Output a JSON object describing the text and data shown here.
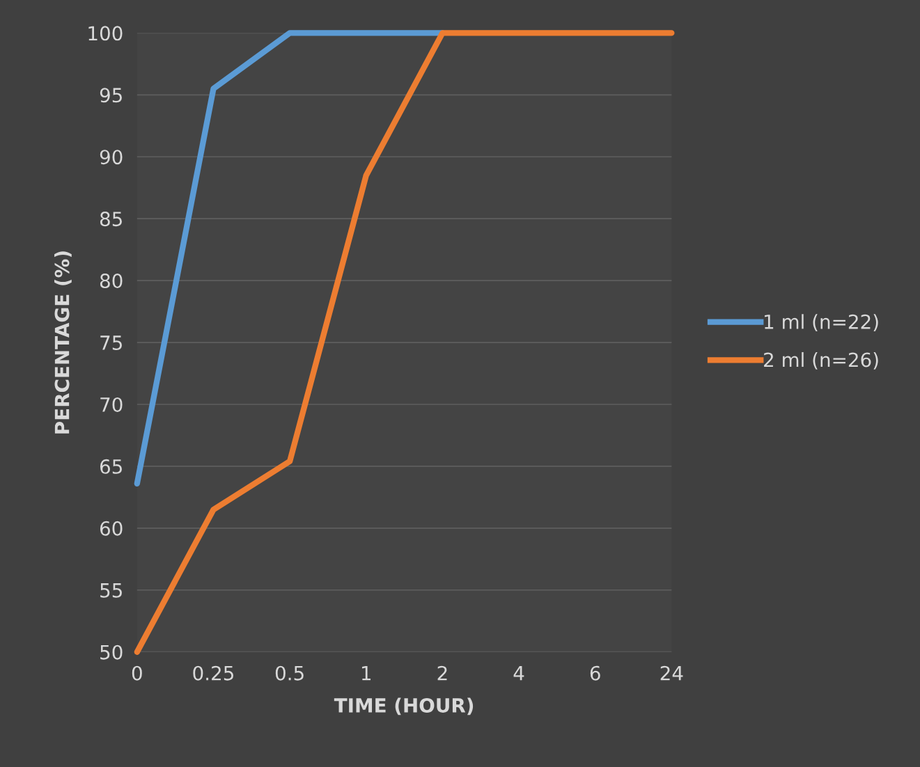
{
  "chart_data": {
    "type": "line",
    "xlabel": "TIME (HOUR)",
    "ylabel": "PERCENTAGE (%)",
    "categories": [
      "0",
      "0.25",
      "0.5",
      "1",
      "2",
      "4",
      "6",
      "24"
    ],
    "series": [
      {
        "name": "1 ml (n=22)",
        "color": "#5b9bd5",
        "values": [
          63.6,
          95.5,
          100,
          100,
          100,
          null,
          null,
          null
        ]
      },
      {
        "name": "2 ml (n=26)",
        "color": "#ed7d31",
        "values": [
          50,
          61.5,
          65.4,
          88.5,
          100,
          100,
          100,
          100
        ]
      }
    ],
    "ylim": [
      50,
      100
    ],
    "yticks": [
      50,
      55,
      60,
      65,
      70,
      75,
      80,
      85,
      90,
      95,
      100
    ],
    "grid": "y",
    "legend": "right",
    "marker": "none",
    "line_style": "solid"
  }
}
